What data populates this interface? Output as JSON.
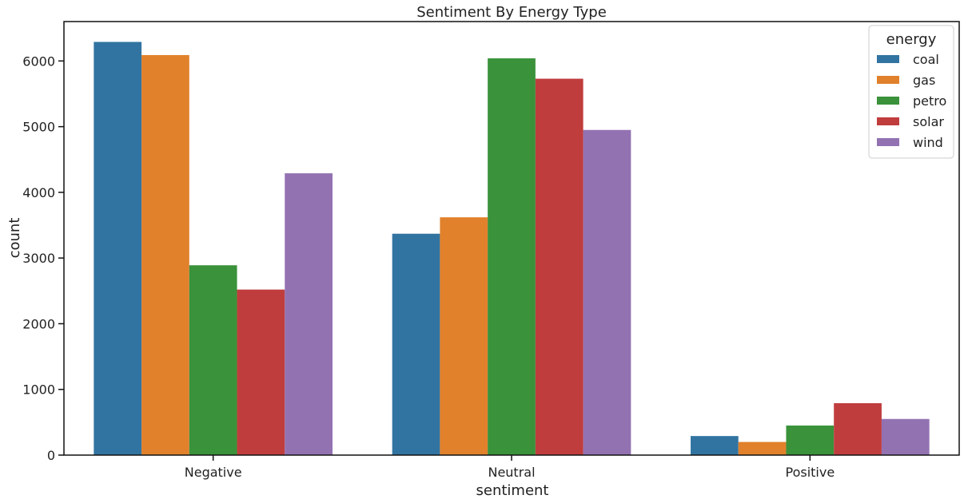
{
  "chart_data": {
    "type": "bar",
    "title": "Sentiment By Energy Type",
    "xlabel": "sentiment",
    "ylabel": "count",
    "categories": [
      "Negative",
      "Neutral",
      "Positive"
    ],
    "ylim": [
      0,
      6600
    ],
    "yticks": [
      0,
      1000,
      2000,
      3000,
      4000,
      5000,
      6000
    ],
    "grid": false,
    "legend": {
      "title": "energy",
      "placement": "top-right"
    },
    "series": [
      {
        "name": "coal",
        "color": "#3274a1",
        "values": [
          6290,
          3370,
          290
        ]
      },
      {
        "name": "gas",
        "color": "#e1812c",
        "values": [
          6090,
          3620,
          200
        ]
      },
      {
        "name": "petro",
        "color": "#3a923a",
        "values": [
          2890,
          6040,
          450
        ]
      },
      {
        "name": "solar",
        "color": "#c03d3e",
        "values": [
          2520,
          5730,
          790
        ]
      },
      {
        "name": "wind",
        "color": "#9372b2",
        "values": [
          4290,
          4950,
          550
        ]
      }
    ]
  }
}
